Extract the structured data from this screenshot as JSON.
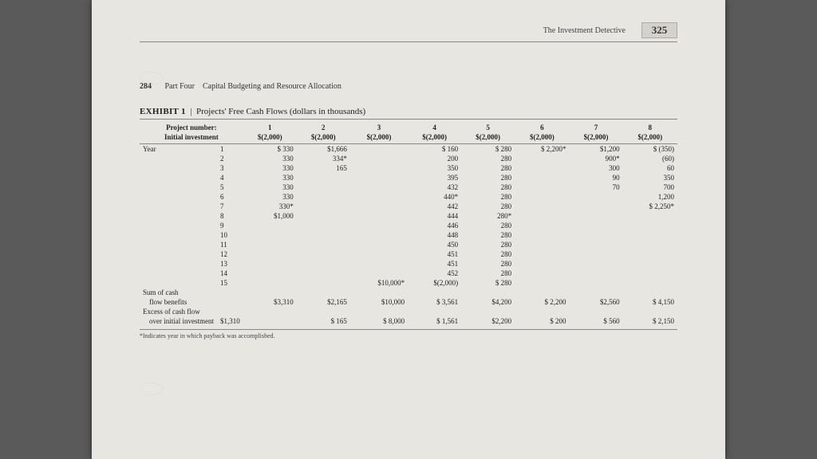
{
  "header": {
    "book_title": "The Investment Detective",
    "page_number": "325"
  },
  "section": {
    "page_left": "284",
    "part": "Part Four",
    "chapter": "Capital Budgeting and Resource Allocation"
  },
  "exhibit": {
    "label": "EXHIBIT 1",
    "separator": "|",
    "title": "Projects' Free Cash Flows (dollars in thousands)"
  },
  "table": {
    "row1_label": "Project number:",
    "row2_label": "Initial investment",
    "col_nums": [
      "1",
      "2",
      "3",
      "4",
      "5",
      "6",
      "7",
      "8"
    ],
    "initial": [
      "$(2,000)",
      "$(2,000)",
      "$(2,000)",
      "$(2,000)",
      "$(2,000)",
      "$(2,000)",
      "$(2,000)",
      "$(2,000)"
    ],
    "year_label": "Year",
    "rows": [
      {
        "y": "1",
        "c": [
          "$   330",
          "$1,666",
          "",
          "$   160",
          "$   280",
          "$ 2,200*",
          "$1,200",
          "$  (350)"
        ]
      },
      {
        "y": "2",
        "c": [
          "330",
          "334*",
          "",
          "200",
          "280",
          "",
          "900*",
          "(60)"
        ]
      },
      {
        "y": "3",
        "c": [
          "330",
          "165",
          "",
          "350",
          "280",
          "",
          "300",
          "60"
        ]
      },
      {
        "y": "4",
        "c": [
          "330",
          "",
          "",
          "395",
          "280",
          "",
          "90",
          "350"
        ]
      },
      {
        "y": "5",
        "c": [
          "330",
          "",
          "",
          "432",
          "280",
          "",
          "70",
          "700"
        ]
      },
      {
        "y": "6",
        "c": [
          "330",
          "",
          "",
          "440*",
          "280",
          "",
          "",
          "1,200"
        ]
      },
      {
        "y": "7",
        "c": [
          "330*",
          "",
          "",
          "442",
          "280",
          "",
          "",
          "$ 2,250*"
        ]
      },
      {
        "y": "8",
        "c": [
          "$1,000",
          "",
          "",
          "444",
          "280*",
          "",
          "",
          ""
        ]
      },
      {
        "y": "9",
        "c": [
          "",
          "",
          "",
          "446",
          "280",
          "",
          "",
          ""
        ]
      },
      {
        "y": "10",
        "c": [
          "",
          "",
          "",
          "448",
          "280",
          "",
          "",
          ""
        ]
      },
      {
        "y": "11",
        "c": [
          "",
          "",
          "",
          "450",
          "280",
          "",
          "",
          ""
        ]
      },
      {
        "y": "12",
        "c": [
          "",
          "",
          "",
          "451",
          "280",
          "",
          "",
          ""
        ]
      },
      {
        "y": "13",
        "c": [
          "",
          "",
          "",
          "451",
          "280",
          "",
          "",
          ""
        ]
      },
      {
        "y": "14",
        "c": [
          "",
          "",
          "",
          "452",
          "280",
          "",
          "",
          ""
        ]
      },
      {
        "y": "15",
        "c": [
          "",
          "",
          "$10,000*",
          "$(2,000)",
          "$   280",
          "",
          "",
          ""
        ]
      }
    ],
    "sum1_label": "Sum of cash",
    "sum1_label2": "flow benefits",
    "sum1": [
      "$3,310",
      "$2,165",
      "$10,000",
      "$ 3,561",
      "$4,200",
      "$ 2,200",
      "$2,560",
      "$ 4,150"
    ],
    "sum2_label": "Excess of cash flow",
    "sum2_label2": "over initial investment",
    "sum2_lead": "$1,310",
    "sum2": [
      "",
      "$   165",
      "$  8,000",
      "$ 1,561",
      "$2,200",
      "$    200",
      "$   560",
      "$ 2,150"
    ]
  },
  "footnote": "*Indicates year in which payback was accomplished."
}
